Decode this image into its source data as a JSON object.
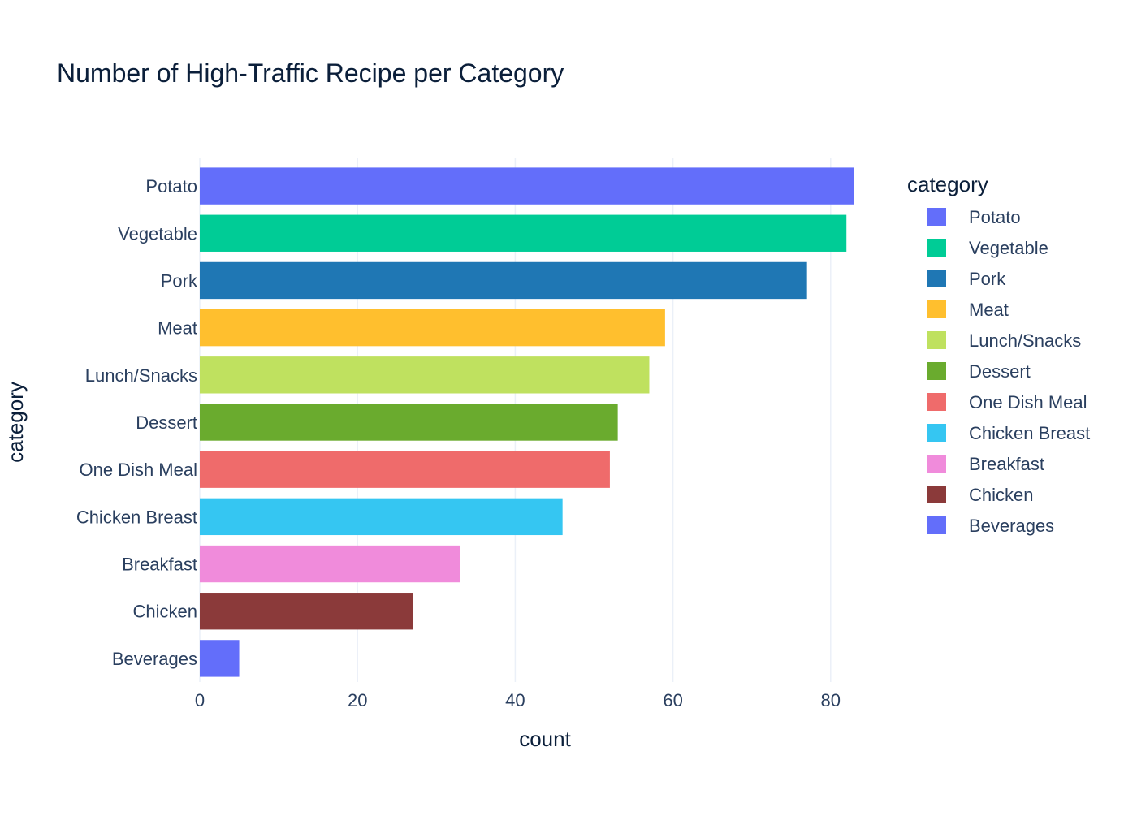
{
  "chart_data": {
    "type": "bar",
    "orientation": "horizontal",
    "title": "Number of High-Traffic Recipe per Category",
    "xlabel": "count",
    "ylabel": "category",
    "xlim": [
      0,
      83
    ],
    "x_ticks": [
      0,
      20,
      40,
      60,
      80
    ],
    "grid": true,
    "legend_title": "category",
    "legend_position": "right",
    "categories": [
      "Potato",
      "Vegetable",
      "Pork",
      "Meat",
      "Lunch/Snacks",
      "Dessert",
      "One Dish Meal",
      "Chicken Breast",
      "Breakfast",
      "Chicken",
      "Beverages"
    ],
    "values": [
      83,
      82,
      77,
      59,
      57,
      53,
      52,
      46,
      33,
      27,
      5
    ],
    "colors": [
      "#636EFA",
      "#00CC96",
      "#1F77B4",
      "#FFBF2E",
      "#BFE15F",
      "#6AAB2E",
      "#EF6B6B",
      "#35C6F2",
      "#F08BDB",
      "#8B3A3A",
      "#636EFA"
    ]
  }
}
